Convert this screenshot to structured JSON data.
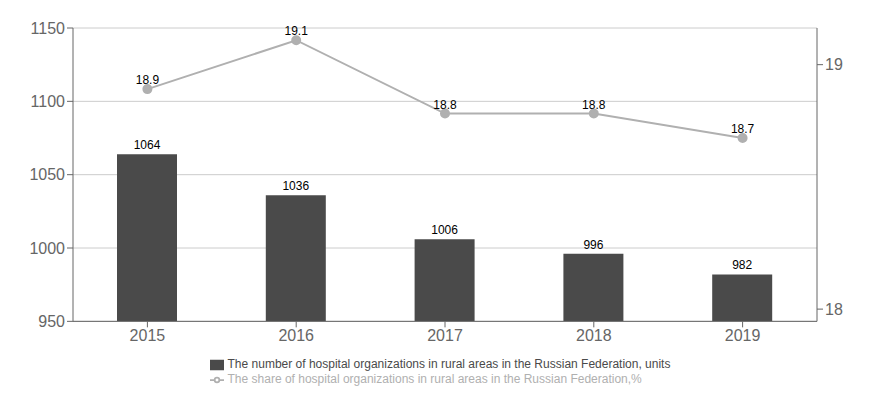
{
  "chart_data": {
    "type": "bar",
    "categories": [
      "2015",
      "2016",
      "2017",
      "2018",
      "2019"
    ],
    "series": [
      {
        "name": "The number of hospital organizations in rural areas in the Russian Federation, units",
        "type": "bar",
        "color": "#4a4a4a",
        "values": [
          1064,
          1036,
          1006,
          996,
          982
        ]
      },
      {
        "name": "The share of hospital organizations in rural areas in the Russian Federation,%",
        "type": "line",
        "axis": "y2",
        "color": "#b0b0b0",
        "marker": "circle",
        "values": [
          18.9,
          19.1,
          18.8,
          18.8,
          18.7
        ]
      }
    ],
    "ylim": [
      950,
      1150
    ],
    "yticks": [
      950,
      1000,
      1050,
      1100,
      1150
    ],
    "y2lim": [
      17.95,
      19.15
    ],
    "y2ticks": [
      18,
      19
    ],
    "grid": true,
    "data_labels": true,
    "legend": "bottom"
  }
}
